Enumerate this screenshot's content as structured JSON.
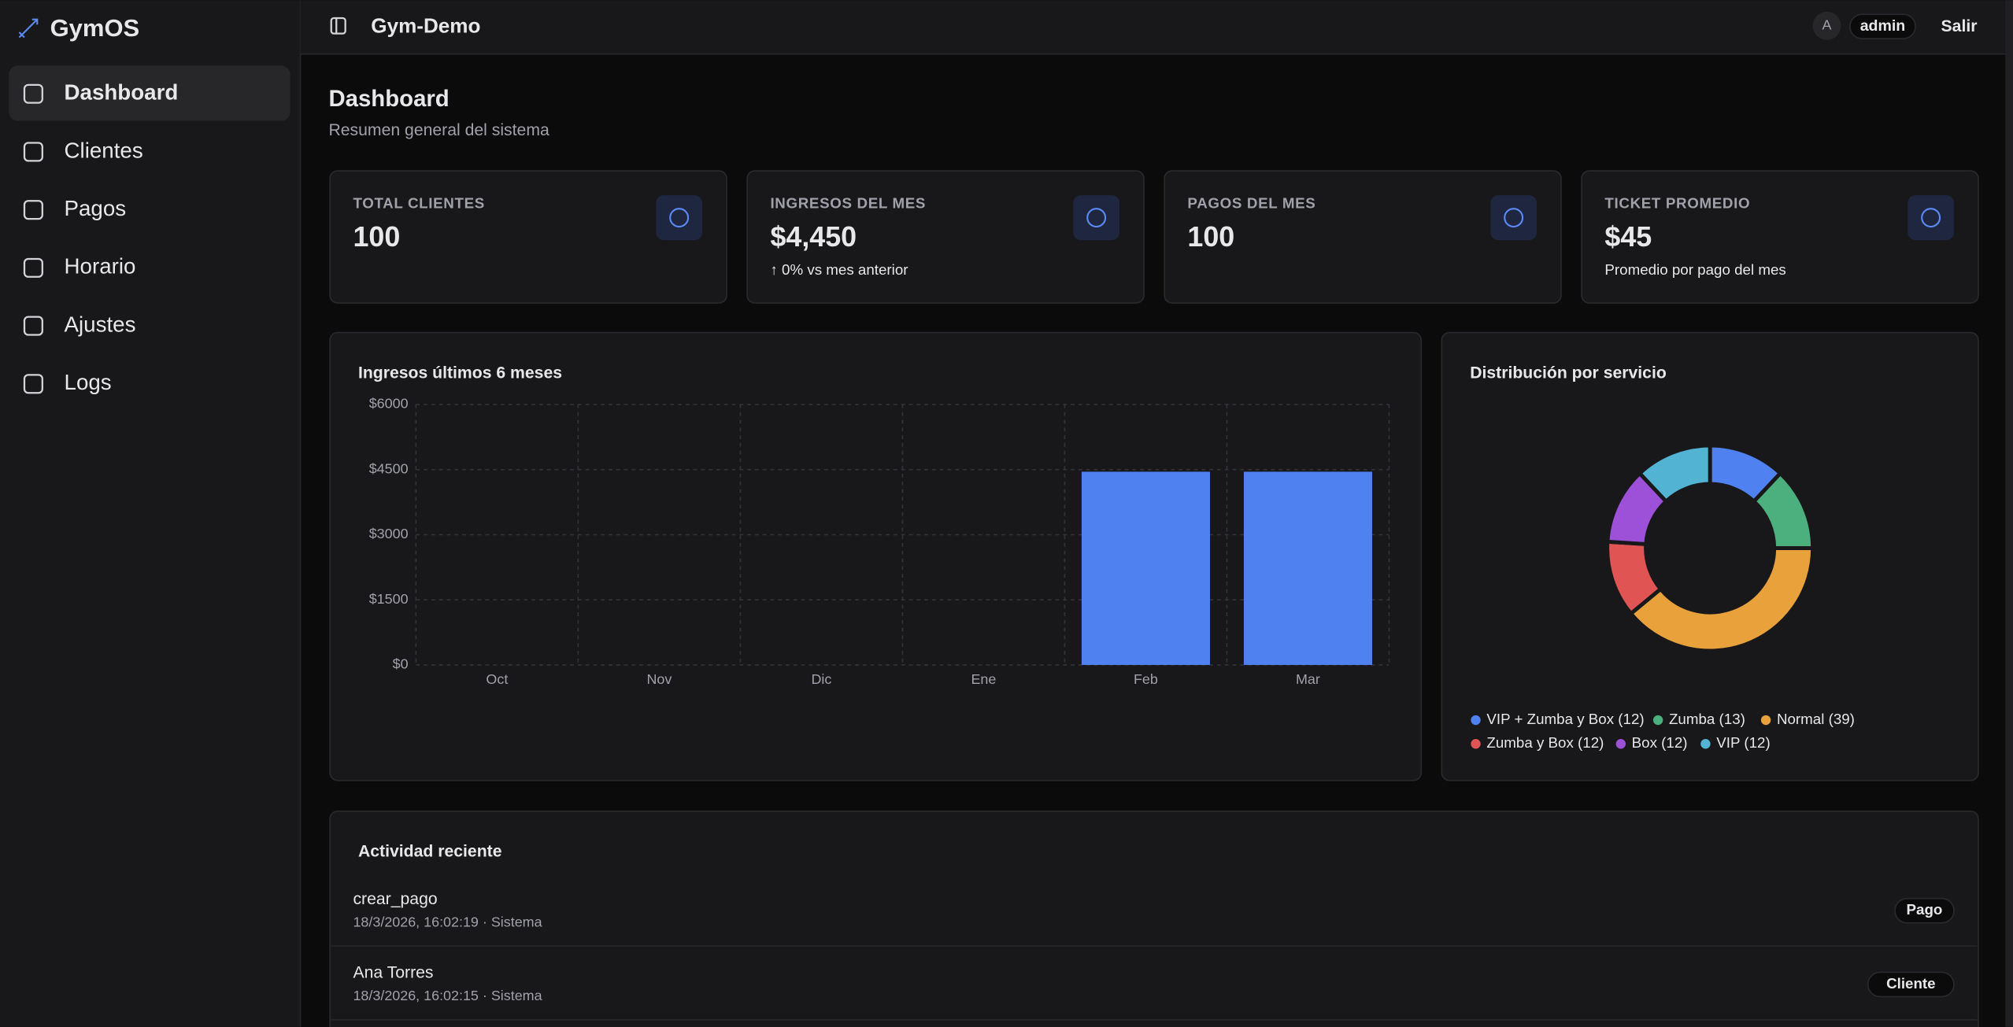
{
  "sidebar": {
    "brand": "GymOS",
    "nav": [
      "Dashboard",
      "Clientes",
      "Pagos",
      "Horario",
      "Ajustes",
      "Logs"
    ]
  },
  "header": {
    "workspace": "Gym-Demo",
    "avatar": "A",
    "user": "admin",
    "logout": "Salir"
  },
  "page": {
    "title": "Dashboard",
    "subtitle": "Resumen general del sistema"
  },
  "stats": [
    {
      "label": "TOTAL CLIENTES",
      "value": "100"
    },
    {
      "label": "INGRESOS DEL MES",
      "value": "$4,450",
      "note": "↑ 0% vs mes anterior"
    },
    {
      "label": "PAGOS DEL MES",
      "value": "100"
    },
    {
      "label": "TICKET PROMEDIO",
      "value": "$45",
      "note": "Promedio por pago del mes"
    }
  ],
  "chart_data": [
    {
      "type": "bar",
      "title": "Ingresos últimos 6 meses",
      "categories": [
        "Oct",
        "Nov",
        "Dic",
        "Ene",
        "Feb",
        "Mar"
      ],
      "values": [
        0,
        0,
        0,
        0,
        4450,
        4450
      ],
      "color": "#4f82f0",
      "ylim": [
        0,
        6000
      ],
      "yticks": [
        {
          "value": 0,
          "label": "$0"
        },
        {
          "value": 1500,
          "label": "$1500"
        },
        {
          "value": 3000,
          "label": "$3000"
        },
        {
          "value": 4500,
          "label": "$4500"
        },
        {
          "value": 6000,
          "label": "$6000"
        }
      ],
      "grid": true
    },
    {
      "type": "pie",
      "title": "Distribución por servicio",
      "categories": [
        "VIP + Zumba y Box (12)",
        "Zumba (13)",
        "Normal (39)",
        "Zumba y Box (12)",
        "Box (12)",
        "VIP (12)"
      ],
      "values": [
        12,
        13,
        39,
        12,
        12,
        12
      ],
      "colors": [
        "#4f82f0",
        "#4cb07e",
        "#e9a23b",
        "#e05454",
        "#9d50d8",
        "#52b3d3"
      ],
      "legend": "bottom"
    }
  ],
  "activity": {
    "title": "Actividad reciente",
    "items": [
      {
        "title": "crear_pago",
        "meta": "18/3/2026, 16:02:19 · Sistema",
        "tag": "Pago"
      },
      {
        "title": "Ana Torres",
        "meta": "18/3/2026, 16:02:15 · Sistema",
        "tag": "Cliente"
      }
    ]
  }
}
